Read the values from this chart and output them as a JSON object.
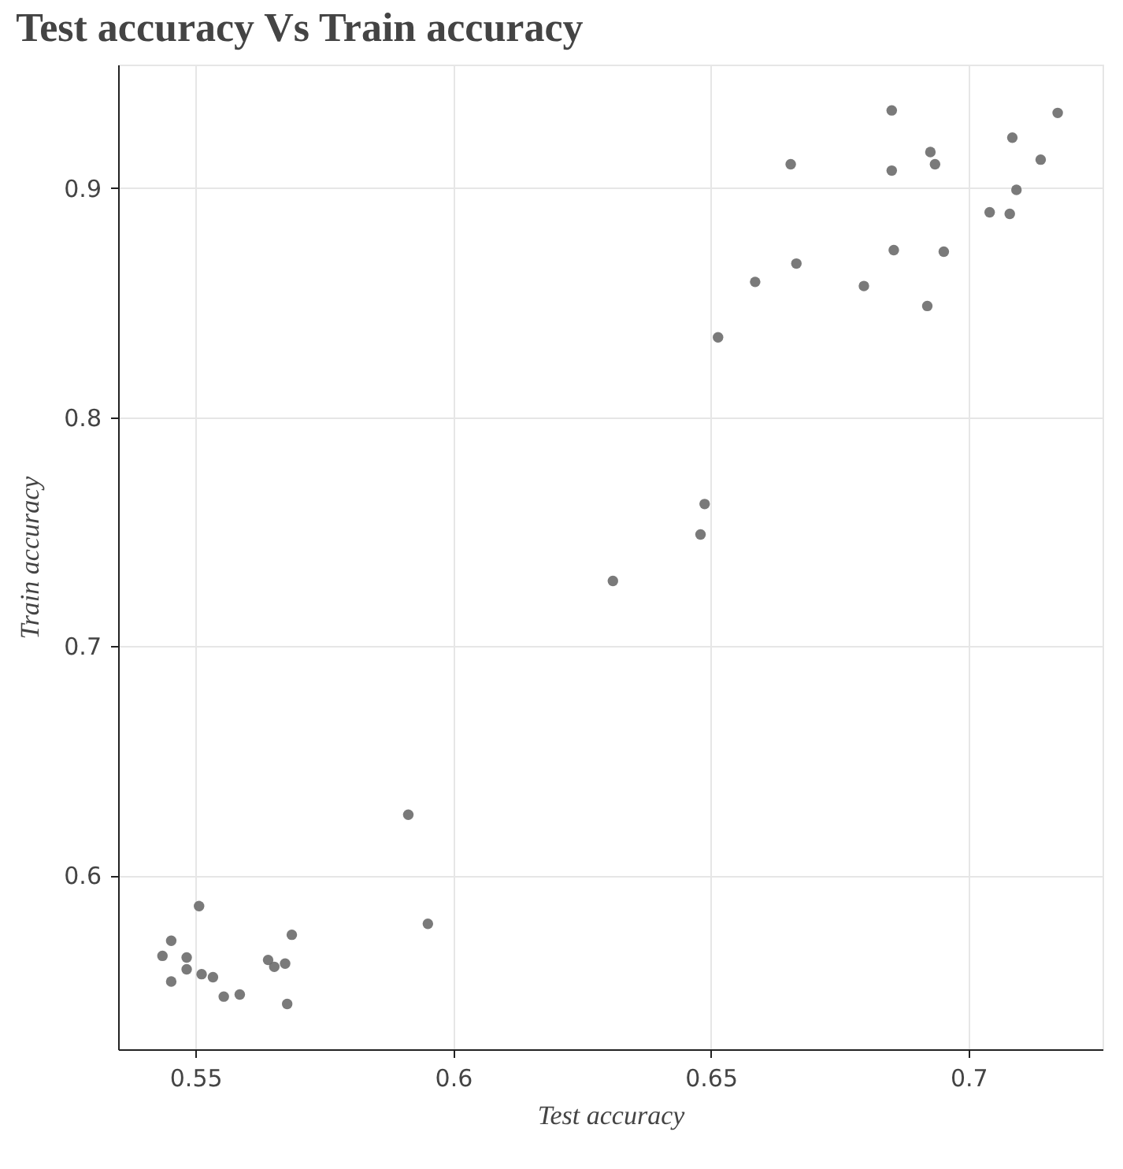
{
  "chart_data": {
    "type": "scatter",
    "title": "Test accuracy Vs Train accuracy",
    "xlabel": "Test accuracy",
    "ylabel": "Train accuracy",
    "x": [
      0.5436,
      0.5453,
      0.5453,
      0.5483,
      0.5483,
      0.5507,
      0.5512,
      0.5534,
      0.5555,
      0.5586,
      0.5641,
      0.5653,
      0.5674,
      0.5687,
      0.5678,
      0.5913,
      0.5951,
      0.6488,
      0.648,
      0.631,
      0.6514,
      0.6586,
      0.6666,
      0.6655,
      0.6797,
      0.6851,
      0.6851,
      0.6855,
      0.6926,
      0.6935,
      0.692,
      0.6952,
      0.7041,
      0.708,
      0.7093,
      0.7085,
      0.714,
      0.7173
    ],
    "series": [
      {
        "color": "#6b6b6b",
        "values": [
          0.5648,
          0.5714,
          0.5536,
          0.5641,
          0.5589,
          0.5865,
          0.5568,
          0.5555,
          0.547,
          0.5479,
          0.563,
          0.56,
          0.5614,
          0.574,
          0.5438,
          0.6264,
          0.5788,
          0.7621,
          0.7488,
          0.7285,
          0.8349,
          0.8591,
          0.8671,
          0.9105,
          0.8573,
          0.934,
          0.9077,
          0.873,
          0.9158,
          0.9105,
          0.8486,
          0.8723,
          0.8895,
          0.8888,
          0.8993,
          0.9221,
          0.9125,
          0.9329
        ]
      }
    ],
    "xlim": [
      0.535,
      0.726
    ],
    "ylim": [
      0.524,
      0.954
    ],
    "xticks": [
      0.55,
      0.6,
      0.65,
      0.7
    ],
    "yticks": [
      0.6,
      0.7,
      0.8,
      0.9
    ],
    "grid": true,
    "marker": "circle"
  }
}
